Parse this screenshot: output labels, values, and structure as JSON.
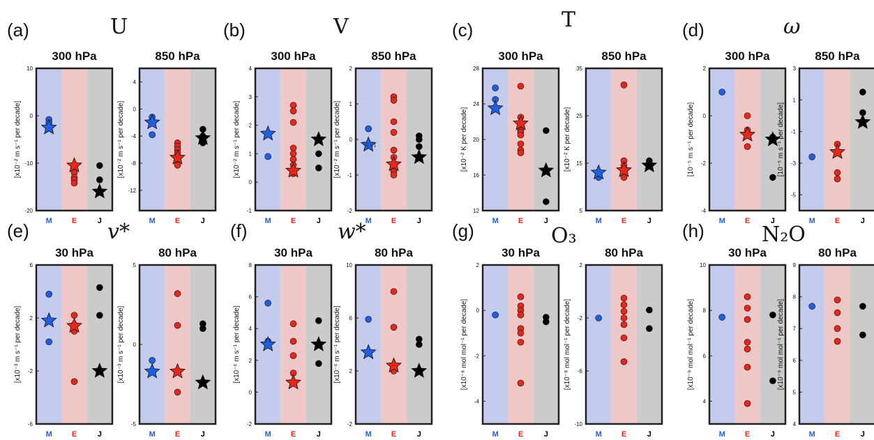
{
  "colors": {
    "M": "#1f5fe0",
    "E": "#e8271b",
    "J": "#000000",
    "bgM": "#c4cbec",
    "bgE": "#efc7c7",
    "bgJ": "#cbcbcb"
  },
  "categories": [
    "M",
    "E",
    "J"
  ],
  "chart_data": [
    {
      "type": "scatter",
      "panel": "(a)",
      "variable": "U",
      "subtitle": "300 hPa",
      "ylabel": "[x10⁻² m s⁻¹ per decade]",
      "ylim": [
        -20,
        10
      ],
      "yticks": [
        10,
        0,
        -10,
        -20
      ],
      "points": {
        "M": [
          -0.8,
          -1.5
        ],
        "E": [
          -12,
          -13,
          -13.5,
          -14.2
        ],
        "J": [
          -10.5,
          -13.5
        ]
      },
      "stars": {
        "M": -2.5,
        "E": -10.5,
        "J": -16
      }
    },
    {
      "type": "scatter",
      "panel": "",
      "variable": "",
      "subtitle": "850 hPa",
      "ylabel": "[x10⁻² m s⁻¹ per decade]",
      "ylim": [
        -15,
        6
      ],
      "yticks": [
        4,
        0,
        -4,
        -8,
        -12
      ],
      "points": {
        "M": [
          -1.2,
          -3.8
        ],
        "E": [
          -5,
          -5.5,
          -6,
          -6.5,
          -7.5,
          -8.3
        ],
        "J": [
          -3,
          -4,
          -5
        ]
      },
      "stars": {
        "M": -2,
        "E": -7.2,
        "J": -4.3
      }
    },
    {
      "type": "scatter",
      "panel": "(b)",
      "variable": "V",
      "subtitle": "300 hPa",
      "ylabel": "[x10⁻² m s⁻¹ per decade]",
      "ylim": [
        -1,
        4
      ],
      "yticks": [
        4,
        3,
        2,
        1,
        0,
        -1
      ],
      "points": {
        "M": [
          0.9
        ],
        "E": [
          2.7,
          2.5,
          2.1,
          1.2,
          1.0,
          0.8,
          0.6,
          0.3
        ],
        "J": [
          1.0,
          0.5
        ]
      },
      "stars": {
        "M": 1.7,
        "E": 0.4,
        "J": 1.5
      }
    },
    {
      "type": "scatter",
      "panel": "",
      "variable": "",
      "subtitle": "850 hPa",
      "ylabel": "[x10⁻² m s⁻¹ per decade]",
      "ylim": [
        -2,
        2
      ],
      "yticks": [
        2,
        1,
        0,
        -1,
        -2
      ],
      "points": {
        "M": [
          0.3
        ],
        "E": [
          1.2,
          1.1,
          0.5,
          0.2,
          -0.3,
          -0.5,
          -0.8,
          -0.9,
          -1.0
        ],
        "J": [
          0.1,
          0.0,
          -0.2
        ]
      },
      "stars": {
        "M": -0.15,
        "E": -0.7,
        "J": -0.5
      },
      "note": "0.01"
    },
    {
      "type": "scatter",
      "panel": "(c)",
      "variable": "T",
      "subtitle": "300 hPa",
      "ylabel": "[x10⁻² K per decade]",
      "ylim": [
        12,
        28
      ],
      "yticks": [
        28,
        24,
        20,
        16,
        12
      ],
      "points": {
        "M": [
          25.8,
          24.5
        ],
        "E": [
          26,
          22.5,
          21,
          20.8,
          20.5,
          19.5,
          18.8,
          18.5
        ],
        "J": [
          21,
          13
        ]
      },
      "stars": {
        "M": 23.5,
        "E": 21.8,
        "J": 16.5
      }
    },
    {
      "type": "scatter",
      "panel": "",
      "variable": "",
      "subtitle": "850 hPa",
      "ylabel": "[x10⁻² K per decade]",
      "ylim": [
        5,
        35
      ],
      "yticks": [
        35,
        25,
        15,
        5
      ],
      "points": {
        "M": [
          12
        ],
        "E": [
          31.5,
          15.5,
          14.5,
          13.5,
          12.5,
          12
        ],
        "J": [
          15.5,
          15,
          14.5
        ]
      },
      "stars": {
        "M": 13,
        "E": 13.5,
        "J": 14.5
      }
    },
    {
      "type": "scatter",
      "panel": "(d)",
      "variable": "ω",
      "subtitle": "300 hPa",
      "ylabel": "[10⁻⁵ m s⁻¹ per decade]",
      "ylim": [
        -4,
        2
      ],
      "yticks": [
        2,
        0,
        -2,
        -4
      ],
      "points": {
        "M": [
          1.0
        ],
        "E": [
          0.0,
          -0.6,
          -1.3
        ],
        "J": [
          -0.9,
          -2.6
        ]
      },
      "stars": {
        "M": null,
        "E": -0.8,
        "J": -1.0
      }
    },
    {
      "type": "scatter",
      "panel": "",
      "variable": "",
      "subtitle": "850 hPa",
      "ylabel": "[10⁻⁵ m s⁻¹ per decade]",
      "ylim": [
        -6,
        3
      ],
      "yticks": [
        3,
        1,
        -1,
        -3,
        -5
      ],
      "points": {
        "M": [
          -2.6
        ],
        "E": [
          -1.8,
          -3.6,
          -4.0
        ],
        "J": [
          1.5,
          0.2
        ]
      },
      "stars": {
        "M": null,
        "E": -2.3,
        "J": -0.4
      }
    },
    {
      "type": "scatter",
      "panel": "(e)",
      "variable": "v*",
      "subtitle": "30 hPa",
      "ylabel": "[x10⁻³ m s⁻¹ per decade]",
      "ylim": [
        -6,
        6
      ],
      "yticks": [
        6,
        2,
        -2,
        -6
      ],
      "points": {
        "M": [
          3.8,
          0.2
        ],
        "E": [
          2.2,
          1.5,
          1.0,
          -2.8
        ],
        "J": [
          4.3,
          2.2
        ]
      },
      "stars": {
        "M": 1.8,
        "E": 1.4,
        "J": -2
      }
    },
    {
      "type": "scatter",
      "panel": "",
      "variable": "",
      "subtitle": "80 hPa",
      "ylabel": "[x10⁻³ m s⁻¹ per decade]",
      "ylim": [
        -5,
        5
      ],
      "yticks": [
        5,
        0,
        -5
      ],
      "points": {
        "M": [
          -1.0
        ],
        "E": [
          3.2,
          1.2,
          -3.0
        ],
        "J": [
          1.3,
          1.0
        ]
      },
      "stars": {
        "M": -1.7,
        "E": -1.7,
        "J": -2.4
      }
    },
    {
      "type": "scatter",
      "panel": "(f)",
      "variable": "w*",
      "subtitle": "30 hPa",
      "ylabel": "[x10⁻⁶ m s⁻¹ per decade]",
      "ylim": [
        -2,
        8
      ],
      "yticks": [
        8,
        6,
        4,
        2,
        0,
        -2
      ],
      "points": {
        "M": [
          5.6,
          3.2
        ],
        "E": [
          4.3,
          3.2,
          2.3,
          1.2
        ],
        "J": [
          4.5,
          1.8
        ]
      },
      "stars": {
        "M": 3.0,
        "E": 0.6,
        "J": 3.0
      }
    },
    {
      "type": "scatter",
      "panel": "",
      "variable": "",
      "subtitle": "80 hPa",
      "ylabel": "[x10⁻⁶ m s⁻¹ per decade]",
      "ylim": [
        -2,
        10
      ],
      "yticks": [
        10,
        6,
        2,
        -2
      ],
      "points": {
        "M": [
          5.9
        ],
        "E": [
          8.0,
          5.3,
          2.0
        ],
        "J": [
          4.4,
          4.0
        ]
      },
      "stars": {
        "M": 3.4,
        "E": 2.4,
        "J": 2.0
      }
    },
    {
      "type": "scatter",
      "panel": "(g)",
      "variable": "O₃",
      "subtitle": "30 hPa",
      "ylabel": "[x10⁻⁸ mol mol⁻¹ per decade]",
      "ylim": [
        -5,
        2
      ],
      "yticks": [
        2,
        0,
        -2,
        -4
      ],
      "points": {
        "M": [
          -0.2
        ],
        "E": [
          0.6,
          0.2,
          0.0,
          -0.2,
          -0.8,
          -1.0,
          -1.4,
          -3.2
        ],
        "J": [
          -0.3,
          -0.5
        ]
      },
      "stars": {
        "M": null,
        "E": null,
        "J": null
      }
    },
    {
      "type": "scatter",
      "panel": "",
      "variable": "",
      "subtitle": "80 hPa",
      "ylabel": "[x10⁻⁸ mol mol⁻¹ per decade]",
      "ylim": [
        -10,
        2
      ],
      "yticks": [
        2,
        -2,
        -6,
        -10
      ],
      "points": {
        "M": [
          -2.0
        ],
        "E": [
          -0.5,
          -1.0,
          -1.5,
          -2.0,
          -2.5,
          -3.5,
          -5.3
        ],
        "J": [
          -1.4,
          -2.8
        ]
      },
      "stars": {
        "M": null,
        "E": null,
        "J": null
      }
    },
    {
      "type": "scatter",
      "panel": "(h)",
      "variable": "N₂O",
      "subtitle": "30 hPa",
      "ylabel": "[x10⁻⁹ mol mol⁻¹ per decade]",
      "ylim": [
        3,
        10
      ],
      "yticks": [
        10,
        8,
        6,
        4
      ],
      "points": {
        "M": [
          7.7
        ],
        "E": [
          8.6,
          8.1,
          7.6,
          6.6,
          6.3,
          5.5,
          3.9
        ],
        "J": [
          7.8,
          4.9
        ]
      },
      "stars": {
        "M": null,
        "E": null,
        "J": null
      }
    },
    {
      "type": "scatter",
      "panel": "",
      "variable": "",
      "subtitle": "80 hPa",
      "ylabel": "[x10⁻⁹ mol mol⁻¹ per decade]",
      "ylim": [
        4,
        9
      ],
      "yticks": [
        9,
        8,
        7,
        6,
        5,
        4
      ],
      "points": {
        "M": [
          7.7
        ],
        "E": [
          7.9,
          7.5,
          7.0,
          6.6
        ],
        "J": [
          7.7,
          6.8
        ]
      },
      "stars": {
        "M": null,
        "E": null,
        "J": null
      }
    }
  ]
}
